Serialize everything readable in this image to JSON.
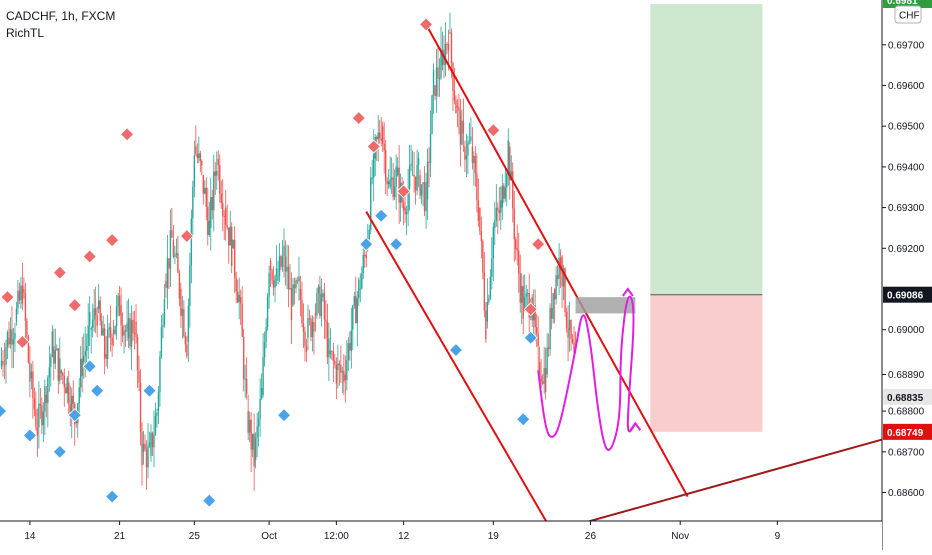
{
  "header": {
    "symbol_line": "CADCHF, 1h, FXCM",
    "indicator": "RichTL",
    "currency_badge": "CHF"
  },
  "chart_data": {
    "type": "candlestick",
    "y_range": [
      0.6853,
      0.6981
    ],
    "x_range_days_index": [
      0,
      118
    ],
    "price_ticks": [
      "0.69700",
      "0.69600",
      "0.69500",
      "0.69400",
      "0.69300",
      "0.69200",
      "0.69000",
      "0.68890",
      "0.68800",
      "0.68700",
      "0.68600"
    ],
    "price_ticks_values": [
      0.697,
      0.696,
      0.695,
      0.694,
      0.693,
      0.692,
      0.69,
      0.6889,
      0.688,
      0.687,
      0.686
    ],
    "time_ticks": [
      {
        "label": "14",
        "x": 4
      },
      {
        "label": "21",
        "x": 16
      },
      {
        "label": "25",
        "x": 26
      },
      {
        "label": "Oct",
        "x": 36
      },
      {
        "label": "12:00",
        "x": 45
      },
      {
        "label": "12",
        "x": 54
      },
      {
        "label": "19",
        "x": 66
      },
      {
        "label": "26",
        "x": 79
      },
      {
        "label": "Nov",
        "x": 91
      },
      {
        "label": "9",
        "x": 104
      }
    ],
    "price_labels": [
      {
        "text": "0.69086",
        "value": 0.69086,
        "style": "dark"
      },
      {
        "text": "0.68835",
        "value": 0.68835,
        "style": "light"
      },
      {
        "text": "0.68749",
        "value": 0.68749,
        "style": "red"
      },
      {
        "text": "0.6981",
        "value": 0.6981,
        "style": "green"
      }
    ],
    "price_path": [
      [
        0,
        0.6891
      ],
      [
        1,
        0.6898
      ],
      [
        2,
        0.6902
      ],
      [
        3,
        0.691
      ],
      [
        4,
        0.6888
      ],
      [
        5,
        0.6876
      ],
      [
        6,
        0.6884
      ],
      [
        7,
        0.6896
      ],
      [
        8,
        0.689
      ],
      [
        9,
        0.6887
      ],
      [
        10,
        0.6878
      ],
      [
        11,
        0.6892
      ],
      [
        12,
        0.69
      ],
      [
        13,
        0.6905
      ],
      [
        14,
        0.6894
      ],
      [
        15,
        0.69
      ],
      [
        16,
        0.6906
      ],
      [
        17,
        0.6898
      ],
      [
        18,
        0.6902
      ],
      [
        19,
        0.687
      ],
      [
        20,
        0.6869
      ],
      [
        21,
        0.688
      ],
      [
        22,
        0.6912
      ],
      [
        23,
        0.6922
      ],
      [
        24,
        0.691
      ],
      [
        25,
        0.6897
      ],
      [
        26,
        0.6945
      ],
      [
        27,
        0.6938
      ],
      [
        28,
        0.6925
      ],
      [
        29,
        0.6942
      ],
      [
        30,
        0.693
      ],
      [
        31,
        0.692
      ],
      [
        32,
        0.6908
      ],
      [
        33,
        0.688
      ],
      [
        34,
        0.6868
      ],
      [
        35,
        0.6884
      ],
      [
        36,
        0.6917
      ],
      [
        37,
        0.6912
      ],
      [
        38,
        0.6918
      ],
      [
        39,
        0.6906
      ],
      [
        40,
        0.691
      ],
      [
        41,
        0.6898
      ],
      [
        42,
        0.6904
      ],
      [
        43,
        0.6908
      ],
      [
        44,
        0.6894
      ],
      [
        45,
        0.689
      ],
      [
        46,
        0.6889
      ],
      [
        47,
        0.69
      ],
      [
        48,
        0.691
      ],
      [
        49,
        0.692
      ],
      [
        50,
        0.6942
      ],
      [
        51,
        0.695
      ],
      [
        52,
        0.6935
      ],
      [
        53,
        0.6938
      ],
      [
        54,
        0.693
      ],
      [
        55,
        0.6938
      ],
      [
        56,
        0.6938
      ],
      [
        57,
        0.6932
      ],
      [
        58,
        0.696
      ],
      [
        59,
        0.6965
      ],
      [
        60,
        0.6973
      ],
      [
        61,
        0.6955
      ],
      [
        62,
        0.6945
      ],
      [
        63,
        0.6945
      ],
      [
        64,
        0.693
      ],
      [
        65,
        0.6902
      ],
      [
        66,
        0.6925
      ],
      [
        67,
        0.693
      ],
      [
        68,
        0.6945
      ],
      [
        69,
        0.692
      ],
      [
        70,
        0.6905
      ],
      [
        71,
        0.6908
      ],
      [
        72,
        0.6892
      ],
      [
        73,
        0.6889
      ],
      [
        74,
        0.691
      ],
      [
        75,
        0.6918
      ],
      [
        76,
        0.69
      ],
      [
        77,
        0.689
      ]
    ],
    "highs": [
      [
        1,
        0.6908
      ],
      [
        3,
        0.6897
      ],
      [
        8,
        0.6914
      ],
      [
        10,
        0.6906
      ],
      [
        12,
        0.6918
      ],
      [
        15,
        0.6922
      ],
      [
        17,
        0.6948
      ],
      [
        25,
        0.6923
      ],
      [
        48,
        0.6952
      ],
      [
        50,
        0.6945
      ],
      [
        54,
        0.6934
      ],
      [
        57,
        0.6975
      ],
      [
        66,
        0.6949
      ],
      [
        72,
        0.6921
      ],
      [
        71,
        0.6905
      ]
    ],
    "lows": [
      [
        0,
        0.688
      ],
      [
        4,
        0.6874
      ],
      [
        8,
        0.687
      ],
      [
        10,
        0.6879
      ],
      [
        12,
        0.6891
      ],
      [
        13,
        0.6885
      ],
      [
        15,
        0.6859
      ],
      [
        20,
        0.6885
      ],
      [
        28,
        0.6858
      ],
      [
        38,
        0.6879
      ],
      [
        49,
        0.6921
      ],
      [
        51,
        0.6928
      ],
      [
        53,
        0.6921
      ],
      [
        61,
        0.6895
      ],
      [
        70,
        0.6878
      ],
      [
        71,
        0.6898
      ]
    ],
    "channel": {
      "upper": [
        [
          57,
          0.6975
        ],
        [
          92,
          0.6859
        ]
      ],
      "lower": [
        [
          49,
          0.6929
        ],
        [
          74,
          0.685
        ]
      ]
    },
    "trendline": [
      [
        77,
        0.6852
      ],
      [
        118,
        0.6873
      ]
    ],
    "position": {
      "entry": 0.69086,
      "target": 0.698,
      "stop": 0.68749,
      "x_start": 87,
      "x_end": 102
    },
    "zone": {
      "x_start": 77,
      "x_end": 85,
      "top": 0.6908,
      "bottom": 0.6904
    },
    "projection": [
      [
        72,
        0.689
      ],
      [
        73,
        0.6875
      ],
      [
        74,
        0.6873
      ],
      [
        75,
        0.6877
      ],
      [
        77,
        0.6895
      ],
      [
        78,
        0.6906
      ],
      [
        79,
        0.6897
      ],
      [
        80,
        0.688
      ],
      [
        81,
        0.687
      ],
      [
        82,
        0.6871
      ],
      [
        83,
        0.6879
      ],
      [
        83,
        0.6895
      ],
      [
        84,
        0.691
      ],
      [
        85,
        0.6905
      ],
      [
        84,
        0.688
      ],
      [
        84,
        0.6874
      ],
      [
        85,
        0.6877
      ]
    ]
  }
}
